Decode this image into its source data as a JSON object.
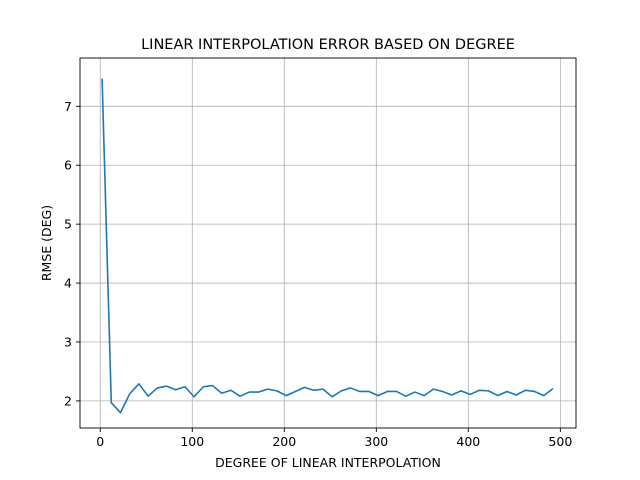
{
  "chart_data": {
    "type": "line",
    "title": "LINEAR INTERPOLATION ERROR BASED ON DEGREE",
    "xlabel": "DEGREE OF LINEAR INTERPOLATION",
    "ylabel": "RMSE (DEG)",
    "xlim": [
      -22,
      517
    ],
    "ylim": [
      1.54,
      7.82
    ],
    "xticks": [
      0,
      100,
      200,
      300,
      400,
      500
    ],
    "yticks": [
      2,
      3,
      4,
      5,
      6,
      7
    ],
    "grid": true,
    "line_color": "#1f77b4",
    "series": [
      {
        "x": [
          2,
          12,
          22,
          32,
          42,
          52,
          62,
          72,
          82,
          92,
          102,
          112,
          122,
          132,
          142,
          152,
          162,
          172,
          182,
          192,
          202,
          212,
          222,
          232,
          242,
          252,
          262,
          272,
          282,
          292,
          302,
          312,
          322,
          332,
          342,
          352,
          362,
          372,
          382,
          392,
          402,
          412,
          422,
          432,
          442,
          452,
          462,
          472,
          482,
          492
        ],
        "y": [
          7.47,
          1.97,
          1.8,
          2.12,
          2.29,
          2.08,
          2.22,
          2.25,
          2.19,
          2.24,
          2.07,
          2.24,
          2.26,
          2.13,
          2.18,
          2.08,
          2.15,
          2.15,
          2.2,
          2.17,
          2.09,
          2.16,
          2.23,
          2.18,
          2.2,
          2.07,
          2.17,
          2.22,
          2.16,
          2.16,
          2.09,
          2.16,
          2.16,
          2.08,
          2.15,
          2.09,
          2.2,
          2.16,
          2.1,
          2.17,
          2.11,
          2.18,
          2.17,
          2.09,
          2.16,
          2.1,
          2.18,
          2.16,
          2.09,
          2.21
        ]
      }
    ]
  }
}
